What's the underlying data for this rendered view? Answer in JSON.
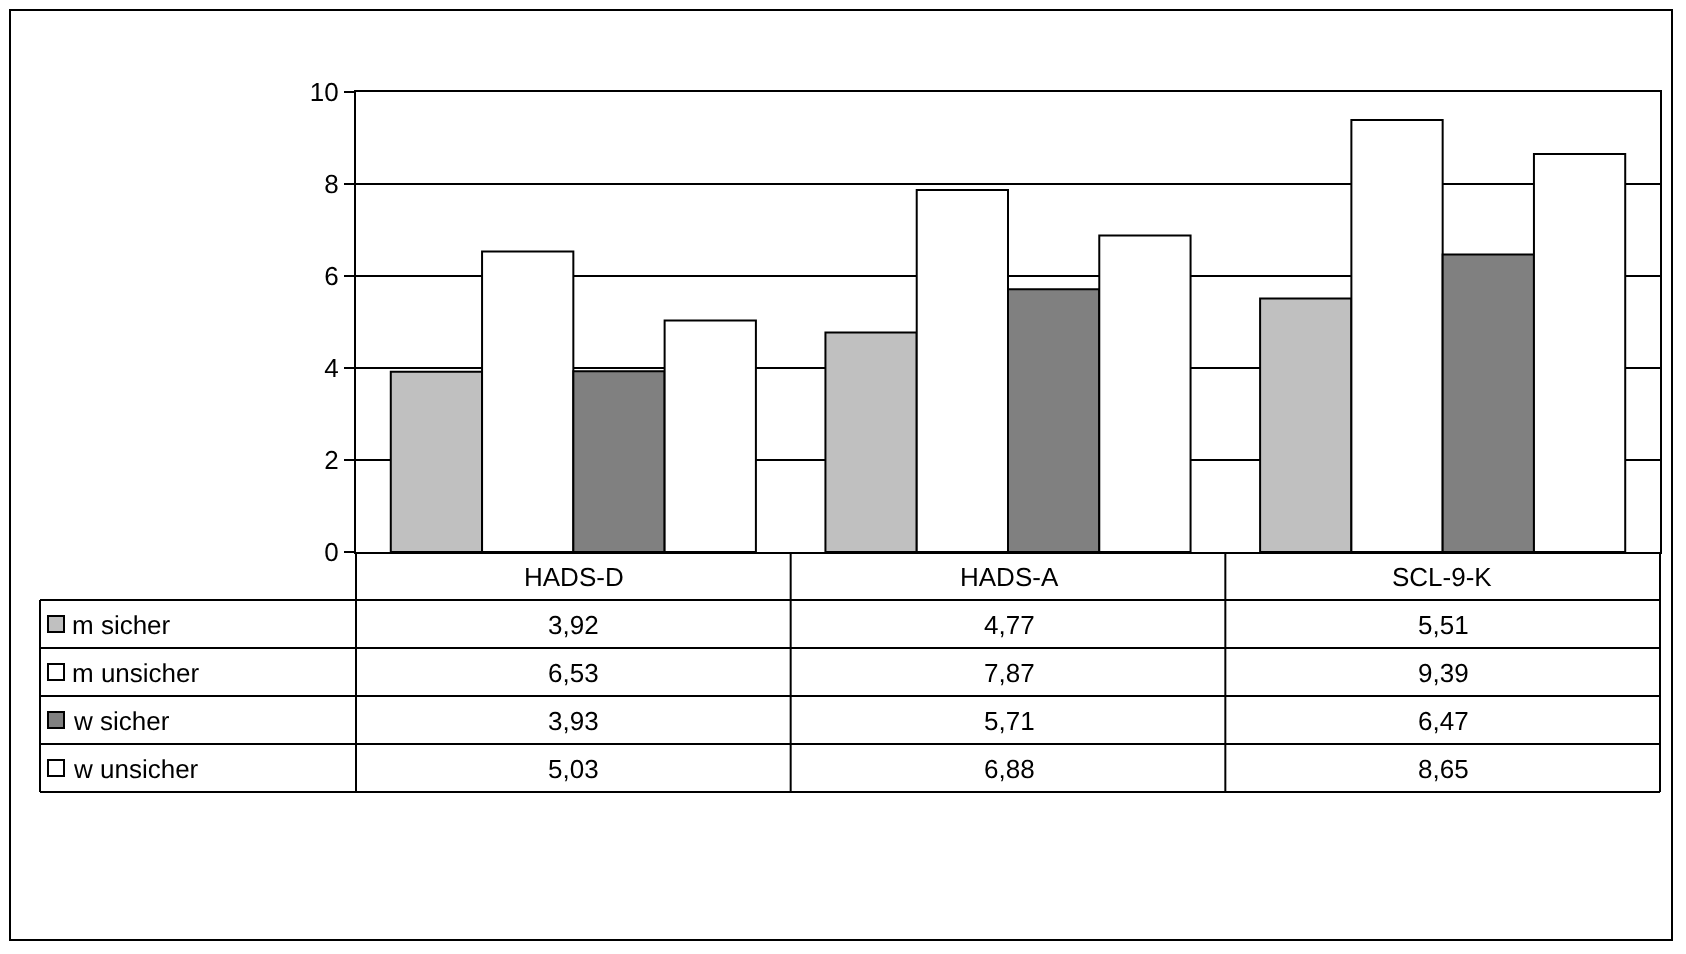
{
  "chart_data": {
    "type": "bar",
    "categories": [
      "HADS-D",
      "HADS-A",
      "SCL-9-K"
    ],
    "series": [
      {
        "name": "m sicher",
        "color": "#c0c0c0",
        "values": [
          3.92,
          4.77,
          5.51
        ],
        "value_labels": [
          "3,92",
          "4,77",
          "5,51"
        ]
      },
      {
        "name": "m unsicher",
        "color": "#ffffff",
        "values": [
          6.53,
          7.87,
          9.39
        ],
        "value_labels": [
          "6,53",
          "7,87",
          "9,39"
        ]
      },
      {
        "name": "w sicher",
        "color": "#808080",
        "values": [
          3.93,
          5.71,
          6.47
        ],
        "value_labels": [
          "3,93",
          "5,71",
          "6,47"
        ]
      },
      {
        "name": "w unsicher",
        "color": "#ffffff",
        "values": [
          5.03,
          6.88,
          8.65
        ],
        "value_labels": [
          "5,03",
          "6,88",
          "8,65"
        ]
      }
    ],
    "ylim": [
      0,
      10
    ],
    "yticks": [
      0,
      2,
      4,
      6,
      8,
      10
    ],
    "grid": "y",
    "legend": "bottom left"
  }
}
